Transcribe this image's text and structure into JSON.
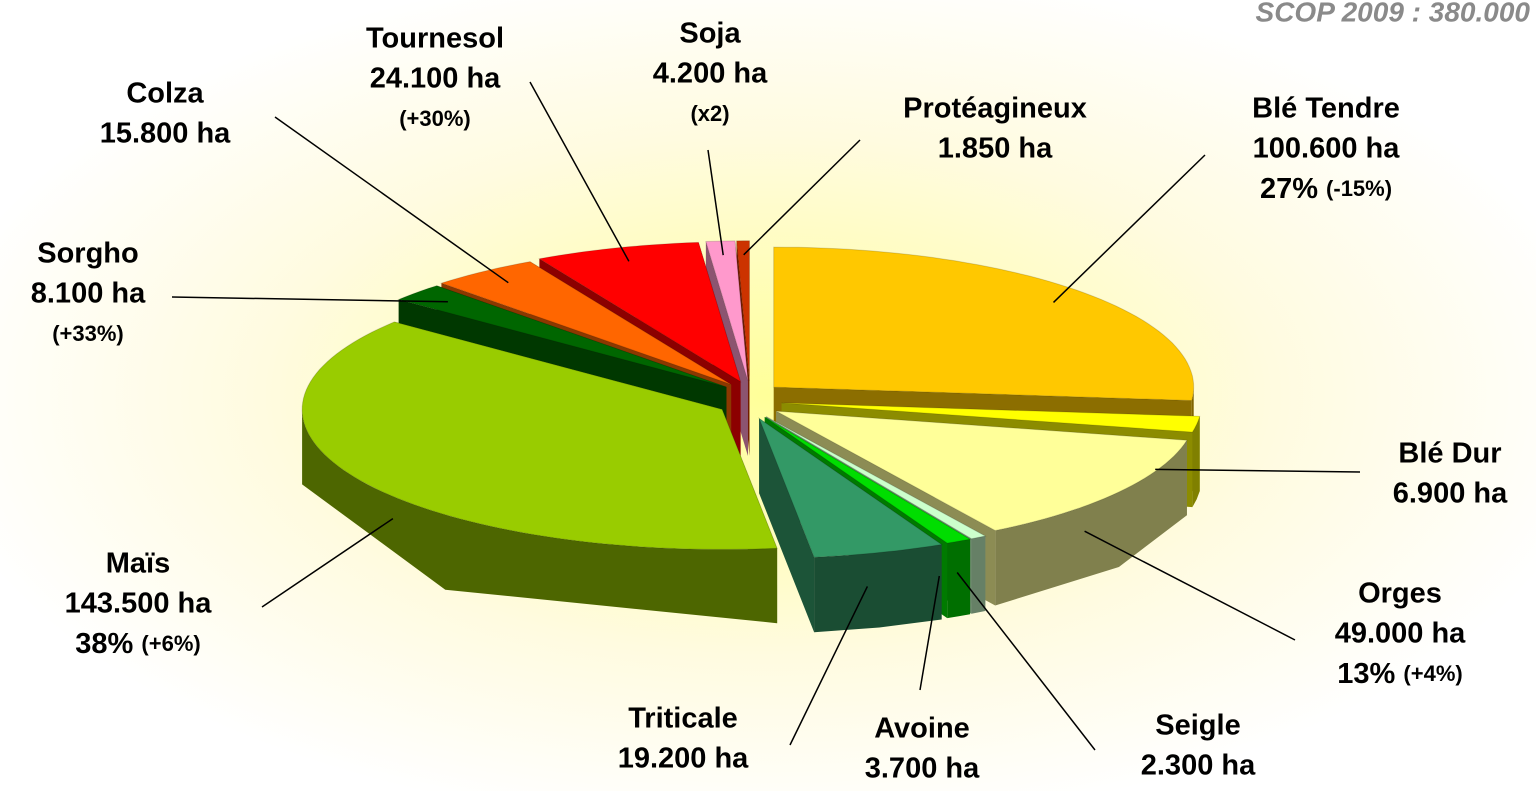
{
  "chart_data": {
    "type": "pie",
    "title": "SCOP 2009 : 380.000",
    "categories": [
      "Blé Tendre",
      "Blé Dur",
      "Orges",
      "Seigle",
      "Avoine",
      "Triticale",
      "Maïs",
      "Sorgho",
      "Colza",
      "Tournesol",
      "Soja",
      "Protéagineux"
    ],
    "values": [
      100600,
      6900,
      49000,
      2300,
      3700,
      19200,
      143500,
      8100,
      15800,
      24100,
      4200,
      1850
    ],
    "value_labels": [
      "100.600 ha",
      "6.900 ha",
      "49.000 ha",
      "2.300 ha",
      "3.700 ha",
      "19.200 ha",
      "143.500 ha",
      "8.100 ha",
      "15.800 ha",
      "24.100 ha",
      "4.200 ha",
      "1.850 ha"
    ],
    "share_labels": [
      "27%",
      null,
      "13%",
      null,
      null,
      null,
      "38%",
      null,
      null,
      null,
      null,
      null
    ],
    "change_labels": [
      "(-15%)",
      null,
      "(+4%)",
      null,
      null,
      null,
      "(+6%)",
      "(+33%)",
      null,
      "(+30%)",
      "(x2)",
      null
    ],
    "colors": [
      "#ffc800",
      "#ffff00",
      "#ffff99",
      "#ccffcc",
      "#00dd00",
      "#339966",
      "#99cc00",
      "#006600",
      "#ff6600",
      "#ff0000",
      "#ff99cc",
      "#cc3300"
    ]
  }
}
